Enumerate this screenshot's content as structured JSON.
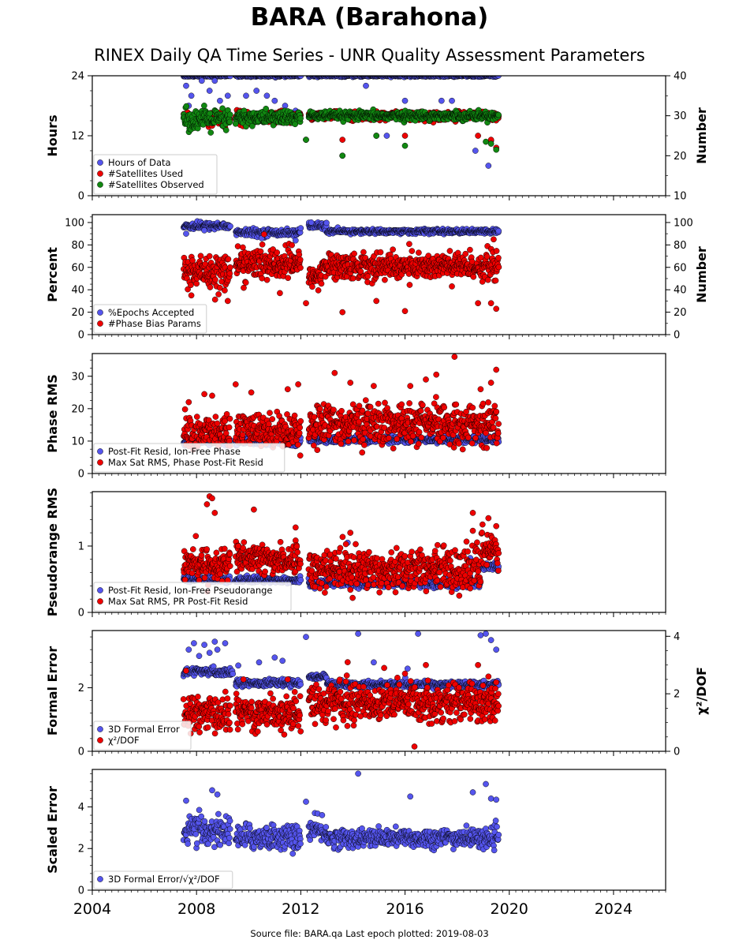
{
  "figure": {
    "title": "BARA (Barahona)",
    "subtitle": "RINEX Daily QA Time Series - UNR Quality Assessment Parameters",
    "source_note": "Source file: BARA.qa Last epoch plotted: 2019-08-03"
  },
  "colors": {
    "blue": "#5555ee",
    "red": "#ee0000",
    "green": "#118811",
    "edge": "#000000"
  },
  "chart_data": [
    {
      "type": "scatter",
      "ylabel": "Hours",
      "ylabel_right": "Number",
      "xlim": [
        2004,
        2026
      ],
      "ylim": [
        0,
        24
      ],
      "ylim_right": [
        10,
        40
      ],
      "yticks": [
        0,
        12,
        24
      ],
      "yticks_right": [
        10,
        20,
        30,
        40
      ],
      "legend_placement": "bottom-left",
      "series": [
        {
          "name": "Hours of Data",
          "color": "blue",
          "axis": "left",
          "segments": [
            [
              2007.5,
              2009.3,
              24,
              0.1
            ],
            [
              2009.5,
              2012.0,
              24,
              0.1
            ],
            [
              2012.3,
              2019.6,
              24,
              0.1
            ]
          ],
          "outliers": [
            [
              2007.6,
              22
            ],
            [
              2007.7,
              18
            ],
            [
              2007.8,
              20
            ],
            [
              2008.2,
              23
            ],
            [
              2008.5,
              21
            ],
            [
              2008.7,
              23
            ],
            [
              2008.9,
              19
            ],
            [
              2009.2,
              20
            ],
            [
              2009.9,
              20
            ],
            [
              2010.3,
              21
            ],
            [
              2010.7,
              20
            ],
            [
              2011.0,
              19
            ],
            [
              2011.4,
              18
            ],
            [
              2011.8,
              17
            ],
            [
              2013.6,
              8
            ],
            [
              2014.5,
              22
            ],
            [
              2015.3,
              12
            ],
            [
              2016.0,
              19
            ],
            [
              2017.4,
              19
            ],
            [
              2017.8,
              19
            ],
            [
              2018.7,
              9
            ],
            [
              2018.8,
              17
            ],
            [
              2019.2,
              6
            ],
            [
              2019.3,
              11
            ]
          ]
        },
        {
          "name": "#Satellites Used",
          "color": "red",
          "axis": "right",
          "segments": [
            [
              2007.5,
              2009.3,
              29.5,
              0.8
            ],
            [
              2009.5,
              2012.0,
              29.5,
              0.8
            ],
            [
              2012.3,
              2019.6,
              30,
              0.5
            ]
          ],
          "outliers": [
            [
              2008.1,
              28
            ],
            [
              2008.6,
              27.5
            ],
            [
              2009.1,
              27
            ],
            [
              2012.2,
              24
            ],
            [
              2013.6,
              24
            ],
            [
              2014.9,
              25
            ],
            [
              2016.0,
              25
            ],
            [
              2018.8,
              25
            ],
            [
              2019.3,
              24
            ],
            [
              2019.5,
              22
            ]
          ]
        },
        {
          "name": "#Satellites Observed",
          "color": "green",
          "axis": "right",
          "segments": [
            [
              2007.5,
              2009.3,
              29,
              1.3
            ],
            [
              2009.5,
              2012.0,
              29.5,
              0.9
            ],
            [
              2012.3,
              2019.6,
              30,
              0.5
            ]
          ],
          "outliers": [
            [
              2009.5,
              28
            ],
            [
              2012.2,
              24
            ],
            [
              2013.6,
              20
            ],
            [
              2014.9,
              25
            ],
            [
              2016.0,
              22.5
            ],
            [
              2019.1,
              23.5
            ],
            [
              2019.3,
              23
            ],
            [
              2019.5,
              21.5
            ]
          ]
        }
      ]
    },
    {
      "type": "scatter",
      "ylabel": "Percent",
      "ylabel_right": "Number",
      "xlim": [
        2004,
        2026
      ],
      "ylim": [
        0,
        107
      ],
      "ylim_right": [
        0,
        107
      ],
      "yticks": [
        0,
        20,
        40,
        60,
        80,
        100
      ],
      "yticks_right": [
        0,
        20,
        40,
        60,
        80,
        100
      ],
      "legend_placement": "bottom-left",
      "series": [
        {
          "name": "%Epochs Accepted",
          "color": "blue",
          "axis": "left",
          "segments": [
            [
              2007.5,
              2009.3,
              97,
              1.5
            ],
            [
              2009.5,
              2012.0,
              91,
              1.5
            ],
            [
              2012.3,
              2013.0,
              97,
              1.5
            ],
            [
              2013.0,
              2019.6,
              92,
              1.0
            ]
          ],
          "outliers": [
            [
              2007.6,
              90
            ],
            [
              2008.3,
              93
            ],
            [
              2010.5,
              86
            ],
            [
              2011.8,
              84
            ],
            [
              2012.4,
              100
            ]
          ]
        },
        {
          "name": "#Phase Bias Params",
          "color": "red",
          "axis": "right",
          "segments": [
            [
              2007.5,
              2009.3,
              56,
              8
            ],
            [
              2009.5,
              2012.0,
              63,
              7
            ],
            [
              2012.3,
              2012.8,
              52,
              4
            ],
            [
              2012.8,
              2019.6,
              61,
              6
            ]
          ],
          "outliers": [
            [
              2007.8,
              35
            ],
            [
              2008.5,
              70
            ],
            [
              2009.2,
              30
            ],
            [
              2011.2,
              37
            ],
            [
              2012.2,
              28
            ],
            [
              2013.6,
              20
            ],
            [
              2014.9,
              30
            ],
            [
              2016.0,
              21
            ],
            [
              2017.8,
              43
            ],
            [
              2018.8,
              28
            ],
            [
              2019.3,
              28
            ],
            [
              2019.5,
              23
            ],
            [
              2019.4,
              85
            ]
          ]
        }
      ]
    },
    {
      "type": "scatter",
      "ylabel": "Phase RMS",
      "xlim": [
        2004,
        2026
      ],
      "ylim": [
        0,
        37
      ],
      "yticks": [
        0,
        10,
        20,
        30
      ],
      "legend_placement": "bottom-left",
      "series": [
        {
          "name": "Post-Fit Resid, Ion-Free Phase",
          "color": "blue",
          "segments": [
            [
              2007.5,
              2009.3,
              9.8,
              0.5
            ],
            [
              2009.5,
              2012.0,
              9.8,
              0.5
            ],
            [
              2012.3,
              2019.6,
              10.5,
              0.5
            ]
          ],
          "outliers": [
            [
              2019.5,
              11.5
            ]
          ]
        },
        {
          "name": "Max Sat RMS, Phase Post-Fit Resid",
          "color": "red",
          "segments": [
            [
              2007.5,
              2009.3,
              12.5,
              2.6
            ],
            [
              2009.5,
              2012.0,
              13.2,
              2.6
            ],
            [
              2012.3,
              2019.6,
              15.2,
              3.0
            ]
          ],
          "outliers": [
            [
              2007.7,
              22
            ],
            [
              2008.3,
              24.5
            ],
            [
              2008.6,
              24
            ],
            [
              2009.5,
              27.5
            ],
            [
              2010.1,
              25
            ],
            [
              2011.5,
              26
            ],
            [
              2011.9,
              27.5
            ],
            [
              2013.3,
              31
            ],
            [
              2013.9,
              28
            ],
            [
              2014.8,
              27
            ],
            [
              2016.2,
              27
            ],
            [
              2016.8,
              29
            ],
            [
              2017.2,
              30.5
            ],
            [
              2017.9,
              36
            ],
            [
              2018.9,
              26
            ],
            [
              2019.3,
              28
            ],
            [
              2019.5,
              32
            ]
          ]
        }
      ]
    },
    {
      "type": "scatter",
      "ylabel": "Pseudorange RMS",
      "xlim": [
        2004,
        2026
      ],
      "ylim": [
        0,
        1.82
      ],
      "yticks": [
        0,
        1
      ],
      "legend_placement": "bottom-left",
      "series": [
        {
          "name": "Post-Fit Resid, Ion-Free Pseudorange",
          "color": "blue",
          "segments": [
            [
              2007.5,
              2009.3,
              0.5,
              0.025
            ],
            [
              2009.5,
              2012.0,
              0.49,
              0.025
            ],
            [
              2012.3,
              2018.9,
              0.44,
              0.03
            ],
            [
              2018.9,
              2019.6,
              0.69,
              0.03
            ]
          ],
          "outliers": [
            [
              2013.8,
              1.05
            ],
            [
              2018.5,
              0.82
            ]
          ]
        },
        {
          "name": "Max Sat RMS, PR Post-Fit Resid",
          "color": "red",
          "segments": [
            [
              2007.5,
              2009.3,
              0.72,
              0.12
            ],
            [
              2009.5,
              2012.0,
              0.8,
              0.11
            ],
            [
              2012.3,
              2018.9,
              0.66,
              0.15
            ],
            [
              2018.9,
              2019.6,
              0.95,
              0.14
            ]
          ],
          "outliers": [
            [
              2008.5,
              1.75
            ],
            [
              2008.6,
              1.72
            ],
            [
              2008.4,
              1.63
            ],
            [
              2008.7,
              1.5
            ],
            [
              2009.6,
              1.0
            ],
            [
              2010.2,
              1.55
            ],
            [
              2011.8,
              1.28
            ],
            [
              2013.9,
              1.2
            ],
            [
              2018.6,
              1.5
            ],
            [
              2018.6,
              1.23
            ],
            [
              2019.2,
              1.42
            ],
            [
              2019.5,
              1.3
            ]
          ]
        }
      ]
    },
    {
      "type": "scatter",
      "ylabel": "Formal Error",
      "ylabel_right": "χ²/DOF",
      "xlim": [
        2004,
        2026
      ],
      "ylim": [
        0,
        3.8
      ],
      "ylim_right": [
        0,
        4.2
      ],
      "yticks": [
        0,
        2
      ],
      "yticks_right": [
        0,
        2,
        4
      ],
      "legend_placement": "bottom-left",
      "series": [
        {
          "name": "3D Formal Error",
          "color": "blue",
          "axis": "left",
          "segments": [
            [
              2007.5,
              2009.4,
              2.5,
              0.06
            ],
            [
              2009.5,
              2012.0,
              2.15,
              0.05
            ],
            [
              2012.3,
              2013.0,
              2.35,
              0.04
            ],
            [
              2013.0,
              2019.6,
              2.1,
              0.05
            ]
          ],
          "outliers": [
            [
              2007.7,
              3.2
            ],
            [
              2007.9,
              3.4
            ],
            [
              2008.1,
              3.0
            ],
            [
              2008.3,
              3.35
            ],
            [
              2008.5,
              3.1
            ],
            [
              2008.7,
              3.45
            ],
            [
              2008.8,
              3.2
            ],
            [
              2009.1,
              3.4
            ],
            [
              2009.6,
              2.7
            ],
            [
              2010.4,
              2.8
            ],
            [
              2011.0,
              2.95
            ],
            [
              2011.3,
              2.85
            ],
            [
              2012.2,
              3.6
            ],
            [
              2014.2,
              3.7
            ],
            [
              2014.8,
              2.8
            ],
            [
              2016.1,
              2.6
            ],
            [
              2016.5,
              3.7
            ],
            [
              2018.9,
              3.65
            ],
            [
              2019.1,
              3.7
            ],
            [
              2019.3,
              3.5
            ],
            [
              2019.5,
              3.2
            ]
          ]
        },
        {
          "name": "χ²/DOF",
          "color": "red",
          "axis": "right",
          "segments": [
            [
              2007.5,
              2009.3,
              1.3,
              0.3
            ],
            [
              2009.5,
              2012.0,
              1.35,
              0.3
            ],
            [
              2012.3,
              2019.6,
              1.7,
              0.32
            ]
          ],
          "outliers": [
            [
              2007.6,
              2.8
            ],
            [
              2009.8,
              2.5
            ],
            [
              2011.5,
              2.5
            ],
            [
              2013.8,
              3.1
            ],
            [
              2015.2,
              2.9
            ],
            [
              2016.0,
              2.7
            ],
            [
              2016.8,
              3.0
            ],
            [
              2018.8,
              3.0
            ],
            [
              2019.2,
              2.6
            ],
            [
              2019.5,
              2.4
            ]
          ]
        }
      ]
    },
    {
      "type": "scatter",
      "ylabel": "Scaled Error",
      "xlim": [
        2004,
        2026
      ],
      "ylim": [
        0,
        5.8
      ],
      "yticks": [
        0,
        2,
        4
      ],
      "legend_placement": "bottom-left",
      "series": [
        {
          "name": "3D Formal Error/√χ²/DOF",
          "color": "blue",
          "segments": [
            [
              2007.5,
              2009.3,
              2.85,
              0.35
            ],
            [
              2009.5,
              2012.0,
              2.55,
              0.3
            ],
            [
              2012.3,
              2013.0,
              2.85,
              0.3
            ],
            [
              2013.0,
              2019.6,
              2.5,
              0.22
            ]
          ],
          "outliers": [
            [
              2007.6,
              4.3
            ],
            [
              2008.6,
              4.8
            ],
            [
              2008.8,
              4.6
            ],
            [
              2012.2,
              4.25
            ],
            [
              2014.2,
              5.6
            ],
            [
              2016.2,
              4.5
            ],
            [
              2018.6,
              4.7
            ],
            [
              2019.1,
              5.1
            ],
            [
              2019.3,
              4.4
            ],
            [
              2019.5,
              4.35
            ]
          ]
        }
      ]
    }
  ],
  "x_tick_labels": [
    "2004",
    "2008",
    "2012",
    "2016",
    "2020",
    "2024"
  ]
}
